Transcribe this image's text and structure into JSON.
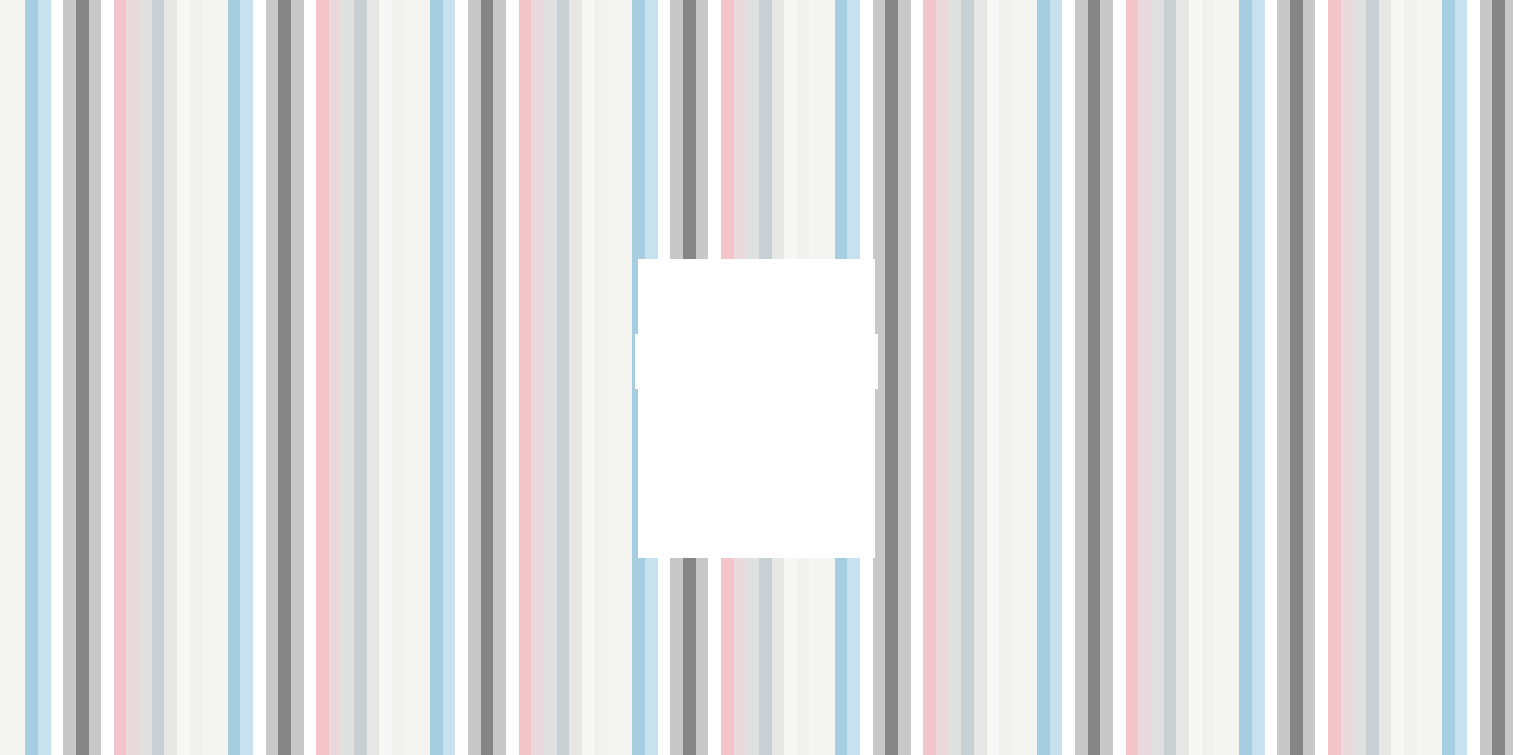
{
  "background": {
    "pattern": "vertical-stripes",
    "colors": {
      "off_white": "#f4f4f1",
      "light_blue": "#a6cee0",
      "pale_blue": "#c7e2ee",
      "white": "#ffffff",
      "light_gray": "#c8c8c8",
      "dark_gray": "#858585",
      "light_pink": "#f3c4c9",
      "blush": "#e9d9dc",
      "gray": "#dfe0e0",
      "blue_gray": "#c9d0d4"
    }
  },
  "panel": {
    "color": "#ffffff"
  }
}
